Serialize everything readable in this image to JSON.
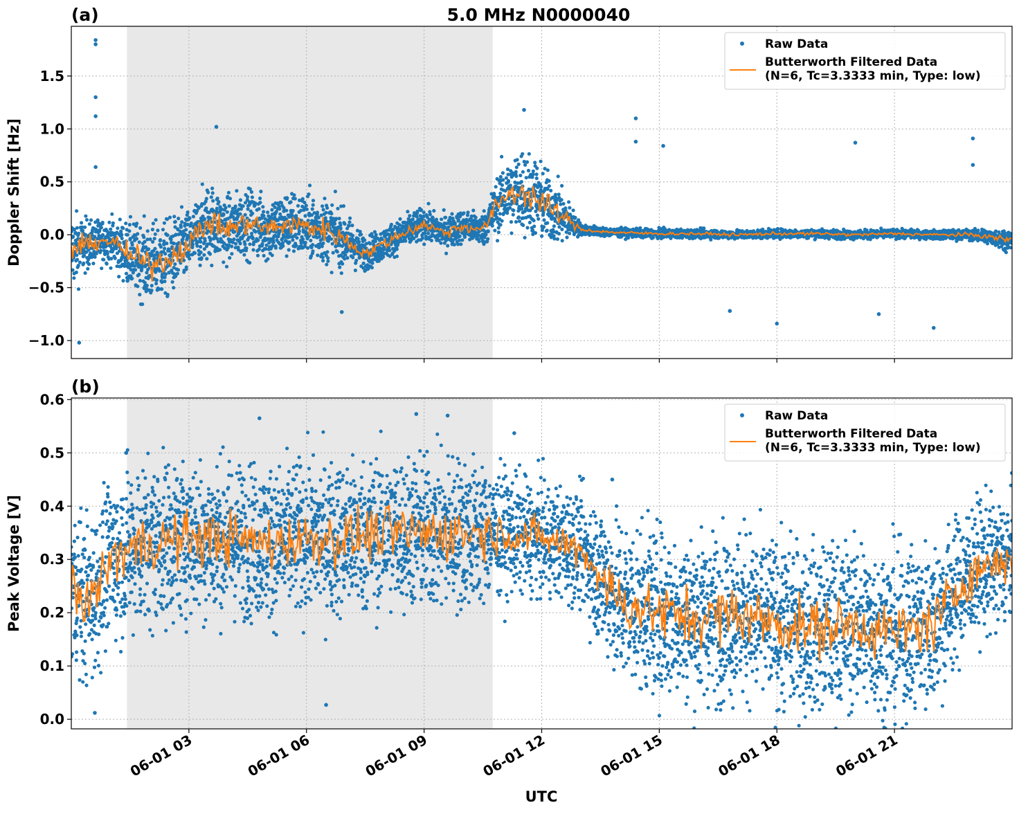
{
  "figure": {
    "title": "5.0 MHz N0000040",
    "xlabel": "UTC",
    "raw_color": "#1f77b4",
    "filtered_color": "#ff7f0e",
    "shade_color": "#e8e8e8"
  },
  "chart_data": [
    {
      "type": "scatter",
      "panel_label": "(a)",
      "ylabel": "Doppler Shift [Hz]",
      "xlim_hours": [
        0,
        24
      ],
      "ylim": [
        -1.17,
        1.97
      ],
      "yticks": [
        -1.0,
        -0.5,
        0.0,
        0.5,
        1.0,
        1.5
      ],
      "ytick_labels": [
        "−1.0",
        "−0.5",
        "0.0",
        "0.5",
        "1.0",
        "1.5"
      ],
      "xticks_hours": [
        3,
        6,
        9,
        12,
        15,
        18,
        21
      ],
      "xtick_labels": [
        "06-01 03",
        "06-01 06",
        "06-01 09",
        "06-01 12",
        "06-01 15",
        "06-01 18",
        "06-01 21"
      ],
      "xtick_labels_visible": false,
      "grid": true,
      "legend": "top-right",
      "shaded_span_hours": [
        1.42,
        10.75
      ],
      "series": [
        {
          "name": "Raw Data",
          "type": "scatter",
          "x": [
            0,
            0.5,
            1,
            1.5,
            2,
            2.5,
            3,
            3.5,
            4,
            4.5,
            5,
            5.5,
            6,
            6.5,
            7,
            7.5,
            8,
            8.5,
            9,
            9.5,
            10,
            10.5,
            11,
            11.5,
            12,
            12.5,
            13,
            13.5,
            14,
            15,
            16,
            17,
            18,
            19,
            20,
            21,
            22,
            23,
            24
          ],
          "y": [
            -0.15,
            -0.08,
            -0.05,
            -0.2,
            -0.28,
            -0.22,
            -0.08,
            0.12,
            0.05,
            0.12,
            0.05,
            0.1,
            0.08,
            0.05,
            -0.05,
            -0.18,
            -0.08,
            0.02,
            0.1,
            0.02,
            0.08,
            0.05,
            0.35,
            0.42,
            0.3,
            0.18,
            0.05,
            0.03,
            0.02,
            0.01,
            0.01,
            0.0,
            0.01,
            0.01,
            0.0,
            0.01,
            0.0,
            0.0,
            -0.05
          ],
          "spread": [
            0.35,
            0.2,
            0.2,
            0.3,
            0.35,
            0.35,
            0.3,
            0.35,
            0.3,
            0.3,
            0.3,
            0.3,
            0.3,
            0.3,
            0.25,
            0.15,
            0.15,
            0.15,
            0.15,
            0.15,
            0.15,
            0.15,
            0.3,
            0.4,
            0.35,
            0.25,
            0.05,
            0.04,
            0.04,
            0.04,
            0.04,
            0.04,
            0.04,
            0.04,
            0.04,
            0.04,
            0.04,
            0.05,
            0.1
          ]
        },
        {
          "name": "Butterworth Filtered Data\n(N=6, Tc=3.3333 min, Type: low)",
          "type": "line",
          "x": [
            0,
            0.5,
            1,
            1.5,
            2,
            2.5,
            3,
            3.5,
            4,
            4.5,
            5,
            5.5,
            6,
            6.5,
            7,
            7.5,
            8,
            8.5,
            9,
            9.5,
            10,
            10.5,
            11,
            11.5,
            12,
            12.5,
            13,
            13.5,
            14,
            15,
            16,
            17,
            18,
            19,
            20,
            21,
            22,
            23,
            24
          ],
          "y": [
            -0.15,
            -0.08,
            -0.05,
            -0.2,
            -0.28,
            -0.22,
            -0.08,
            0.12,
            0.05,
            0.12,
            0.05,
            0.1,
            0.08,
            0.05,
            -0.05,
            -0.18,
            -0.08,
            0.02,
            0.1,
            0.02,
            0.08,
            0.05,
            0.35,
            0.42,
            0.3,
            0.18,
            0.05,
            0.03,
            0.02,
            0.01,
            0.01,
            0.0,
            0.01,
            0.01,
            0.0,
            0.01,
            0.0,
            0.0,
            -0.05
          ]
        }
      ],
      "outliers": [
        {
          "x": 0.62,
          "y": 1.84
        },
        {
          "x": 0.62,
          "y": 1.8
        },
        {
          "x": 0.62,
          "y": 1.3
        },
        {
          "x": 0.62,
          "y": 1.12
        },
        {
          "x": 0.62,
          "y": 0.64
        },
        {
          "x": 3.7,
          "y": 1.02
        },
        {
          "x": 11.55,
          "y": 1.18
        },
        {
          "x": 14.4,
          "y": 1.1
        },
        {
          "x": 14.4,
          "y": 0.88
        },
        {
          "x": 15.1,
          "y": 0.84
        },
        {
          "x": 20.0,
          "y": 0.87
        },
        {
          "x": 23.0,
          "y": 0.91
        },
        {
          "x": 23.0,
          "y": 0.66
        },
        {
          "x": 18.0,
          "y": -0.84
        },
        {
          "x": 22.0,
          "y": -0.88
        },
        {
          "x": 0.2,
          "y": -1.02
        },
        {
          "x": 6.9,
          "y": -0.73
        },
        {
          "x": 16.8,
          "y": -0.72
        },
        {
          "x": 20.6,
          "y": -0.75
        }
      ]
    },
    {
      "type": "scatter",
      "panel_label": "(b)",
      "ylabel": "Peak Voltage [V]",
      "xlim_hours": [
        0,
        24
      ],
      "ylim": [
        -0.018,
        0.603
      ],
      "yticks": [
        0.0,
        0.1,
        0.2,
        0.3,
        0.4,
        0.5,
        0.6
      ],
      "ytick_labels": [
        "0.0",
        "0.1",
        "0.2",
        "0.3",
        "0.4",
        "0.5",
        "0.6"
      ],
      "xticks_hours": [
        3,
        6,
        9,
        12,
        15,
        18,
        21
      ],
      "xtick_labels": [
        "06-01 03",
        "06-01 06",
        "06-01 09",
        "06-01 12",
        "06-01 15",
        "06-01 18",
        "06-01 21"
      ],
      "xtick_labels_visible": true,
      "grid": true,
      "legend": "top-right",
      "shaded_span_hours": [
        1.42,
        10.75
      ],
      "series": [
        {
          "name": "Raw Data",
          "type": "scatter",
          "x": [
            0,
            0.5,
            1,
            1.5,
            2,
            3,
            4,
            5,
            6,
            7,
            8,
            9,
            10,
            11,
            12,
            13,
            13.5,
            14,
            15,
            16,
            17,
            18,
            19,
            20,
            21,
            22,
            23,
            24
          ],
          "y": [
            0.25,
            0.22,
            0.3,
            0.32,
            0.33,
            0.34,
            0.34,
            0.33,
            0.34,
            0.34,
            0.35,
            0.35,
            0.35,
            0.35,
            0.34,
            0.32,
            0.27,
            0.22,
            0.2,
            0.19,
            0.2,
            0.18,
            0.17,
            0.18,
            0.16,
            0.18,
            0.28,
            0.3
          ],
          "spread": [
            0.14,
            0.15,
            0.14,
            0.15,
            0.15,
            0.14,
            0.14,
            0.14,
            0.14,
            0.14,
            0.14,
            0.14,
            0.14,
            0.11,
            0.1,
            0.1,
            0.13,
            0.15,
            0.15,
            0.15,
            0.15,
            0.15,
            0.15,
            0.15,
            0.15,
            0.15,
            0.12,
            0.12
          ]
        },
        {
          "name": "Butterworth Filtered Data\n(N=6, Tc=3.3333 min, Type: low)",
          "type": "line",
          "x": [
            0,
            0.5,
            1,
            1.5,
            2,
            3,
            4,
            5,
            6,
            7,
            8,
            9,
            10,
            11,
            12,
            13,
            13.5,
            14,
            15,
            16,
            17,
            18,
            19,
            20,
            21,
            22,
            23,
            24
          ],
          "y": [
            0.25,
            0.22,
            0.3,
            0.32,
            0.33,
            0.34,
            0.34,
            0.33,
            0.34,
            0.34,
            0.35,
            0.35,
            0.35,
            0.35,
            0.34,
            0.32,
            0.27,
            0.22,
            0.2,
            0.19,
            0.2,
            0.18,
            0.17,
            0.18,
            0.16,
            0.18,
            0.28,
            0.3
          ]
        }
      ],
      "outliers": [
        {
          "x": 1.4,
          "y": 0.5
        },
        {
          "x": 4.8,
          "y": 0.565
        },
        {
          "x": 8.8,
          "y": 0.573
        },
        {
          "x": 9.6,
          "y": 0.57
        },
        {
          "x": 11.3,
          "y": 0.537
        },
        {
          "x": 6.5,
          "y": 0.027
        },
        {
          "x": 0.6,
          "y": 0.012
        },
        {
          "x": 13.8,
          "y": 0.45
        }
      ]
    }
  ]
}
